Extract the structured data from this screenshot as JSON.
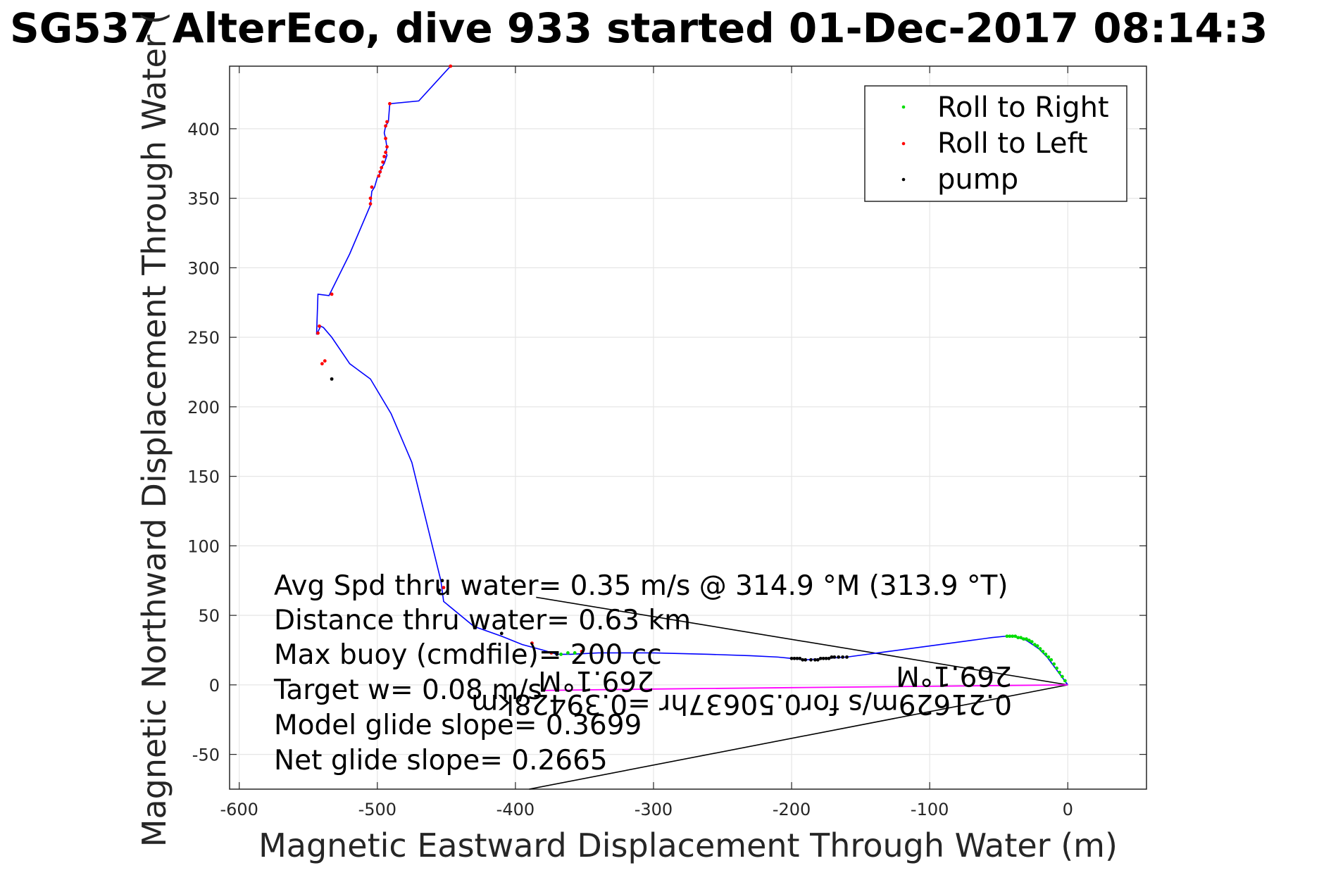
{
  "chart_data": {
    "type": "line",
    "title": "SG537 AlterEco, dive 933 started 01-Dec-2017 08:14:3",
    "xlabel": "Magnetic Eastward Displacement Through Water (m)",
    "ylabel": "Magnetic Northward Displacement Through Water (",
    "xlim": [
      -607,
      57
    ],
    "ylim": [
      -75,
      445
    ],
    "xticks": [
      -600,
      -500,
      -400,
      -300,
      -200,
      -100,
      0
    ],
    "yticks": [
      -50,
      0,
      50,
      100,
      150,
      200,
      250,
      300,
      350,
      400
    ],
    "grid": true,
    "legend": {
      "placement": "top-right",
      "entries": [
        {
          "label": "Roll to Right",
          "color": "#00dd00"
        },
        {
          "label": "Roll to Left",
          "color": "#ff0000"
        },
        {
          "label": "pump",
          "color": "#000000"
        }
      ]
    },
    "colors": {
      "track": "#0000ff",
      "magenta": "#ff00ff",
      "lines": "#000000"
    },
    "series": [
      {
        "name": "",
        "type": "line",
        "x": [
          0,
          -3,
          -6,
          -9,
          -12,
          -15,
          -18,
          -21,
          -24,
          -27,
          -30,
          -33,
          -36,
          -39,
          -42,
          -45,
          -55,
          -70,
          -100,
          -130,
          -160,
          -175,
          -190,
          -200,
          -210,
          -230,
          -260,
          -300,
          -340,
          -360,
          -370,
          -380,
          -395,
          -410,
          -430,
          -452,
          -454,
          -475,
          -490,
          -505,
          -520,
          -533,
          -539,
          -541,
          -544,
          -543,
          -535,
          -520,
          -505,
          -504,
          -502,
          -500,
          -498,
          -497,
          -495,
          -494,
          -493,
          -494,
          -493,
          -494,
          -495,
          -494,
          -492,
          -491,
          -470,
          -447
        ],
        "y": [
          0,
          4,
          8,
          12,
          16,
          20,
          23,
          26,
          28,
          30,
          32,
          33,
          34,
          35,
          35,
          35,
          34,
          32,
          28,
          24,
          20,
          19,
          18,
          19,
          20,
          21,
          22,
          23,
          23,
          22,
          22,
          25,
          29,
          35,
          42,
          60,
          75,
          160,
          195,
          220,
          231,
          250,
          257,
          258,
          252,
          281,
          280,
          310,
          345,
          355,
          358,
          365,
          368,
          372,
          375,
          378,
          381,
          383,
          386,
          393,
          397,
          402,
          405,
          418,
          420,
          445
        ]
      },
      {
        "name": "",
        "type": "line",
        "color": "#ff00ff",
        "x": [
          0,
          -100,
          -200,
          -300,
          -380
        ],
        "y": [
          0,
          -1,
          -2,
          -3,
          -4
        ]
      }
    ],
    "markers": {
      "roll_right": {
        "x": [
          -2,
          -4,
          -6,
          -8,
          -10,
          -12,
          -14,
          -16,
          -18,
          -20,
          -22,
          -24,
          -26,
          -28,
          -30,
          -32,
          -34,
          -36,
          -38,
          -40,
          -42,
          -44,
          -367,
          -362,
          -357
        ],
        "y": [
          3,
          6,
          9,
          12,
          15,
          18,
          20,
          22,
          24,
          26,
          28,
          29,
          31,
          32,
          33,
          33,
          34,
          34,
          35,
          35,
          35,
          35,
          22,
          23,
          23
        ]
      },
      "roll_left": {
        "x": [
          -447,
          -491,
          -493,
          -494,
          -494,
          -493,
          -494,
          -495,
          -496,
          -497,
          -498,
          -499,
          -504,
          -505,
          -505,
          -533,
          -538,
          -540,
          -542,
          -543,
          -452,
          -388,
          -352,
          -374
        ],
        "y": [
          445,
          418,
          405,
          402,
          393,
          387,
          383,
          380,
          376,
          372,
          369,
          366,
          358,
          350,
          346,
          281,
          233,
          231,
          258,
          253,
          70,
          30,
          24,
          23
        ],
        "pairs_note": ""
      },
      "pump": {
        "x": [
          -453,
          -533,
          -455,
          -200,
          -198,
          -196,
          -194,
          -192,
          -190,
          -186,
          -183,
          -181,
          -179,
          -177,
          -175,
          -173,
          -171,
          -169,
          -166,
          -163,
          -160,
          -410,
          -370
        ],
        "y": [
          75,
          220,
          68,
          19,
          19,
          19,
          19,
          18,
          18,
          18,
          18,
          18,
          19,
          19,
          19,
          19,
          20,
          20,
          20,
          20,
          20,
          37,
          22
        ]
      }
    },
    "black_lines": [
      {
        "x": [
          0,
          -385
        ],
        "y": [
          0,
          63
        ]
      },
      {
        "x": [
          0,
          -390
        ],
        "y": [
          0,
          -75
        ]
      }
    ],
    "annotations": [
      "Avg Spd thru water=  0.35 m/s @ 314.9 °M (313.9 °T)",
      "Distance thru water=  0.63 km",
      "Max buoy (cmdfile)= 200 cc",
      "Target w= 0.08 m/s",
      "Model glide slope= 0.3699",
      "Net glide slope= 0.2665"
    ],
    "flipped_annotations": [
      "269.1°M",
      "0.21629m/s for0.50637hr =0.39428km",
      "269.1°M"
    ]
  }
}
